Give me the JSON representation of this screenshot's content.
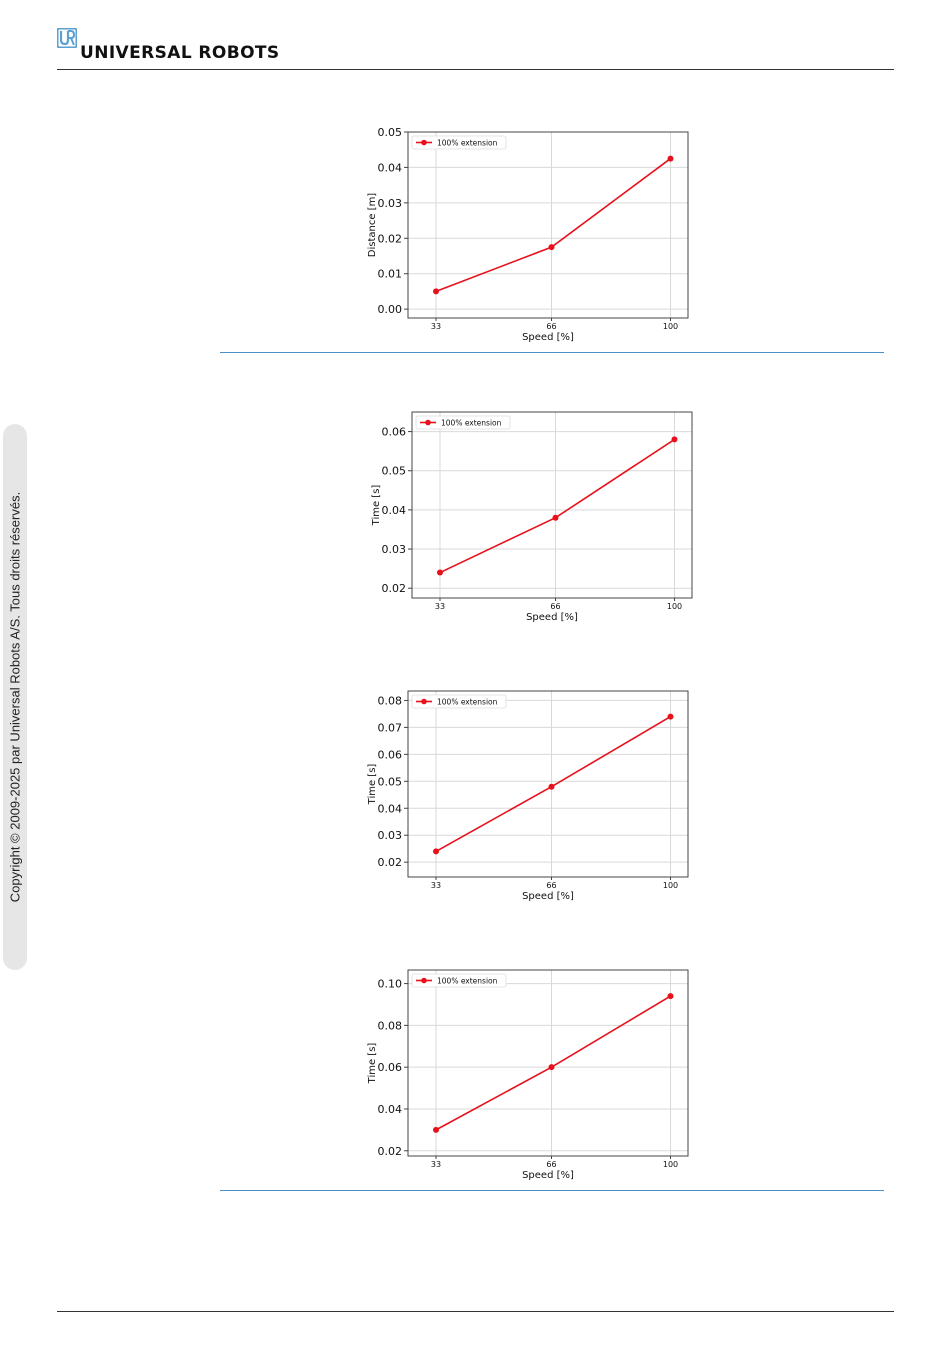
{
  "header": {
    "brand_name": "UNIVERSAL ROBOTS",
    "logo_icon": "ur-logo-icon",
    "logo_color": "#5aa0d0"
  },
  "sidebar": {
    "copyright": "Copyright © 2009-2025 par Universal Robots A/S. Tous droits réservés."
  },
  "colors": {
    "series": "#e8101a",
    "accent_rule": "#4a90c8"
  },
  "chart_data": [
    {
      "type": "line",
      "x": [
        33,
        66,
        100
      ],
      "series": [
        {
          "name": "100% extension",
          "values": [
            0.005,
            0.0175,
            0.0425
          ]
        }
      ],
      "xlabel": "Speed [%]",
      "ylabel": "Distance [m]",
      "xticks": [
        "33",
        "66",
        "100"
      ],
      "yticks": [
        "0.00",
        "0.01",
        "0.02",
        "0.03",
        "0.04",
        "0.05"
      ],
      "ylim": [
        -0.0025,
        0.05
      ],
      "grid": true,
      "legend": "top-left"
    },
    {
      "type": "line",
      "x": [
        33,
        66,
        100
      ],
      "series": [
        {
          "name": "100% extension",
          "values": [
            0.024,
            0.038,
            0.058
          ]
        }
      ],
      "xlabel": "Speed [%]",
      "ylabel": "Time [s]",
      "xticks": [
        "33",
        "66",
        "100"
      ],
      "yticks": [
        "0.02",
        "0.03",
        "0.04",
        "0.05",
        "0.06"
      ],
      "ylim": [
        0.0175,
        0.065
      ],
      "grid": true,
      "legend": "top-left"
    },
    {
      "type": "line",
      "x": [
        33,
        66,
        100
      ],
      "series": [
        {
          "name": "100% extension",
          "values": [
            0.024,
            0.048,
            0.074
          ]
        }
      ],
      "xlabel": "Speed [%]",
      "ylabel": "Time [s]",
      "xticks": [
        "33",
        "66",
        "100"
      ],
      "yticks": [
        "0.02",
        "0.03",
        "0.04",
        "0.05",
        "0.06",
        "0.07",
        "0.08"
      ],
      "ylim": [
        0.0145,
        0.0835
      ],
      "grid": true,
      "legend": "top-left"
    },
    {
      "type": "line",
      "x": [
        33,
        66,
        100
      ],
      "series": [
        {
          "name": "100% extension",
          "values": [
            0.03,
            0.06,
            0.094
          ]
        }
      ],
      "xlabel": "Speed [%]",
      "ylabel": "Time [s]",
      "xticks": [
        "33",
        "66",
        "100"
      ],
      "yticks": [
        "0.02",
        "0.04",
        "0.06",
        "0.08",
        "0.10"
      ],
      "ylim": [
        0.0175,
        0.1065
      ],
      "grid": true,
      "legend": "top-left"
    }
  ]
}
